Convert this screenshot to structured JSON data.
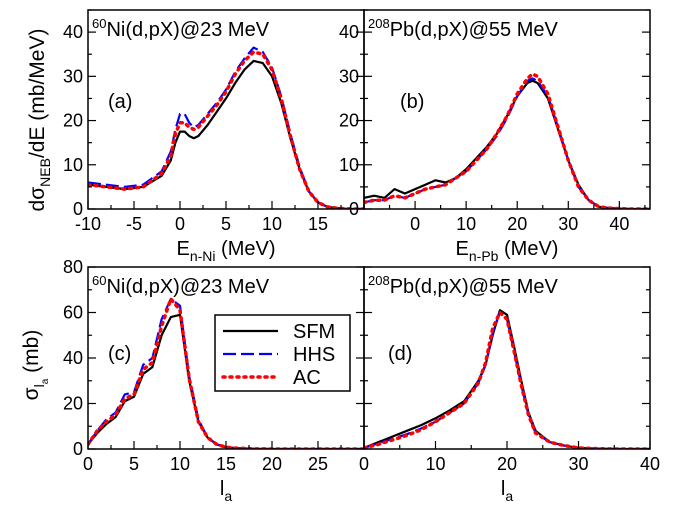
{
  "figure": {
    "top_ylabel": {
      "main": "dσ",
      "sub": "NEB",
      "rest": "/dE (mb/MeV)"
    },
    "bottom_ylabel": {
      "main": "σ",
      "sub": "l",
      "subsub": "a",
      "rest": " (mb)"
    },
    "legend": [
      {
        "label": "SFM",
        "color": "#000000",
        "dash": "solid"
      },
      {
        "label": "HHS",
        "color": "#0000ff",
        "dash": "dashed"
      },
      {
        "label": "AC",
        "color": "#ff0000",
        "dash": "dotted"
      }
    ]
  },
  "chart_data": [
    {
      "type": "line",
      "panel": "(a)",
      "reaction": {
        "mass": "60",
        "text": "Ni(d,pX)@23 MeV"
      },
      "xlabel": {
        "main": "E",
        "sub": "n-Ni",
        "rest": " (MeV)"
      },
      "xlim": [
        -10,
        20
      ],
      "ylim": [
        0,
        45
      ],
      "xticks": [
        -10,
        -5,
        0,
        5,
        10,
        15
      ],
      "yticks": [
        0,
        10,
        20,
        30,
        40
      ],
      "grid": false,
      "series": [
        {
          "name": "SFM",
          "x": [
            -10,
            -8,
            -6,
            -4,
            -2,
            -1,
            -0.5,
            0,
            0.5,
            1,
            1.5,
            2,
            3,
            4,
            5,
            6,
            7,
            8,
            9,
            10,
            11,
            12,
            13,
            14,
            15,
            16,
            17,
            18,
            19,
            20
          ],
          "y": [
            5.5,
            5,
            4.5,
            5,
            7.5,
            11,
            15,
            17.5,
            17.5,
            16.5,
            16,
            16.5,
            19,
            22,
            25,
            28.5,
            31.5,
            33.5,
            33,
            30,
            24,
            16,
            9,
            4,
            1.5,
            0.5,
            0.2,
            0.05,
            0,
            0
          ]
        },
        {
          "name": "HHS",
          "x": [
            -10,
            -8,
            -6,
            -4,
            -2,
            -1,
            -0.5,
            0,
            0.5,
            1,
            1.5,
            2,
            3,
            4,
            5,
            6,
            7,
            8,
            9,
            10,
            11,
            12,
            13,
            14,
            15,
            16,
            17,
            18,
            19,
            20
          ],
          "y": [
            6,
            5.5,
            5,
            5.5,
            8.5,
            13,
            18,
            21.5,
            21.5,
            19.5,
            18.5,
            19,
            21.5,
            24,
            27,
            31,
            34,
            36.5,
            35.5,
            32,
            25.5,
            17,
            9.5,
            4,
            1.5,
            0.5,
            0.2,
            0.05,
            0,
            0
          ]
        },
        {
          "name": "AC",
          "x": [
            -10,
            -8,
            -6,
            -4,
            -2,
            -1,
            -0.5,
            0,
            0.5,
            1,
            1.5,
            2,
            3,
            4,
            5,
            6,
            7,
            8,
            9,
            10,
            11,
            12,
            13,
            14,
            15,
            16,
            17,
            18,
            19,
            20
          ],
          "y": [
            5.5,
            5,
            4.5,
            5,
            8,
            12,
            17,
            19.5,
            19.5,
            18.5,
            18,
            18.5,
            21,
            23.5,
            26.5,
            30.5,
            33.5,
            35.5,
            35,
            31.5,
            25,
            16.5,
            9,
            4,
            1.5,
            0.5,
            0.2,
            0.05,
            0,
            0
          ]
        }
      ]
    },
    {
      "type": "line",
      "panel": "(b)",
      "reaction": {
        "mass": "208",
        "text": "Pb(d,pX)@55 MeV"
      },
      "xlabel": {
        "main": "E",
        "sub": "n-Pb",
        "rest": " (MeV)"
      },
      "xlim": [
        -10,
        46
      ],
      "ylim": [
        0,
        45
      ],
      "xticks": [
        0,
        10,
        20,
        30,
        40
      ],
      "yticks": [
        0,
        10,
        20,
        30,
        40
      ],
      "grid": false,
      "series": [
        {
          "name": "SFM",
          "x": [
            -10,
            -8,
            -6,
            -4,
            -2,
            0,
            2,
            4,
            6,
            8,
            10,
            12,
            14,
            16,
            18,
            20,
            22,
            23,
            24,
            26,
            28,
            30,
            32,
            34,
            36,
            38,
            40,
            42,
            44,
            46
          ],
          "y": [
            2.5,
            3,
            2.5,
            4.5,
            3.5,
            4.5,
            5.5,
            6.5,
            6,
            7,
            9,
            11.5,
            14,
            17,
            21,
            25.5,
            28.5,
            29,
            28.5,
            25,
            18,
            11,
            5.5,
            2,
            0.5,
            0.2,
            0.1,
            0,
            0,
            0
          ]
        },
        {
          "name": "HHS",
          "x": [
            -10,
            -8,
            -6,
            -4,
            -2,
            0,
            2,
            4,
            6,
            8,
            10,
            12,
            14,
            16,
            18,
            20,
            22,
            23,
            24,
            26,
            28,
            30,
            32,
            34,
            36,
            38,
            40,
            42,
            44,
            46
          ],
          "y": [
            1.5,
            2,
            2,
            3,
            2.5,
            3.5,
            4.5,
            5,
            5.5,
            7,
            8.5,
            11,
            13.5,
            16.5,
            20.5,
            25.5,
            29,
            29.5,
            29,
            25.5,
            18.5,
            11,
            5,
            2,
            0.5,
            0.2,
            0.1,
            0,
            0,
            0
          ]
        },
        {
          "name": "AC",
          "x": [
            -10,
            -8,
            -6,
            -4,
            -2,
            0,
            2,
            4,
            6,
            8,
            10,
            12,
            14,
            16,
            18,
            20,
            22,
            23,
            24,
            26,
            28,
            30,
            32,
            34,
            36,
            38,
            40,
            42,
            44,
            46
          ],
          "y": [
            1.5,
            2,
            2,
            3,
            2.5,
            3.5,
            4.5,
            5,
            5.5,
            7,
            8.5,
            11,
            13.5,
            17,
            21,
            26,
            29.5,
            30.5,
            30,
            26,
            18.5,
            11,
            5,
            2,
            0.5,
            0.2,
            0.1,
            0,
            0,
            0
          ]
        }
      ]
    },
    {
      "type": "line",
      "panel": "(c)",
      "reaction": {
        "mass": "60",
        "text": "Ni(d,pX)@23 MeV"
      },
      "xlabel": {
        "main": "l",
        "sub": "a",
        "rest": ""
      },
      "xlim": [
        0,
        30
      ],
      "ylim": [
        0,
        80
      ],
      "xticks": [
        0,
        5,
        10,
        15,
        20,
        25
      ],
      "yticks": [
        0,
        20,
        40,
        60,
        80
      ],
      "grid": false,
      "series": [
        {
          "name": "SFM",
          "x": [
            0,
            1,
            2,
            3,
            4,
            5,
            6,
            7,
            8,
            9,
            10,
            11,
            12,
            13,
            14,
            15,
            16,
            18,
            20,
            22,
            25,
            28,
            30
          ],
          "y": [
            2,
            7,
            11,
            14,
            21,
            23,
            33,
            36,
            50,
            58,
            59,
            30,
            12,
            5,
            2,
            0.8,
            0.4,
            0.1,
            0,
            0,
            0,
            0,
            0
          ]
        },
        {
          "name": "HHS",
          "x": [
            0,
            1,
            2,
            3,
            4,
            5,
            6,
            7,
            8,
            9,
            10,
            11,
            12,
            13,
            14,
            15,
            16,
            18,
            20,
            22,
            25,
            28,
            30
          ],
          "y": [
            2,
            8,
            13,
            16,
            24,
            25,
            37,
            40,
            57,
            66,
            63,
            32,
            13,
            5,
            2,
            0.8,
            0.4,
            0.1,
            0,
            0,
            0,
            0,
            0
          ]
        },
        {
          "name": "AC",
          "x": [
            0,
            1,
            2,
            3,
            4,
            5,
            6,
            7,
            8,
            9,
            10,
            11,
            12,
            13,
            14,
            15,
            16,
            18,
            20,
            22,
            25,
            28,
            30
          ],
          "y": [
            2,
            8,
            12,
            15,
            22,
            24,
            35,
            38,
            54,
            66,
            61,
            31,
            12,
            5,
            2,
            0.8,
            0.4,
            0.1,
            0,
            0,
            0,
            0,
            0
          ]
        }
      ]
    },
    {
      "type": "line",
      "panel": "(d)",
      "reaction": {
        "mass": "208",
        "text": "Pb(d,pX)@55 MeV"
      },
      "xlabel": {
        "main": "l",
        "sub": "a",
        "rest": ""
      },
      "xlim": [
        0,
        40
      ],
      "ylim": [
        0,
        80
      ],
      "xticks": [
        0,
        10,
        20,
        30,
        40
      ],
      "yticks": [],
      "grid": false,
      "series": [
        {
          "name": "SFM",
          "x": [
            0,
            2,
            4,
            6,
            8,
            10,
            12,
            14,
            16,
            17,
            18,
            19,
            20,
            21,
            22,
            23,
            24,
            26,
            28,
            30,
            32,
            35,
            40
          ],
          "y": [
            0.5,
            3,
            5.5,
            8,
            10.5,
            13.5,
            17,
            21,
            30,
            37,
            50,
            61,
            59,
            45,
            30,
            16,
            8,
            3,
            1.5,
            0.5,
            0.2,
            0,
            0
          ]
        },
        {
          "name": "HHS",
          "x": [
            0,
            2,
            4,
            6,
            8,
            10,
            12,
            14,
            16,
            17,
            18,
            19,
            20,
            21,
            22,
            23,
            24,
            26,
            28,
            30,
            32,
            35,
            40
          ],
          "y": [
            0.5,
            2.5,
            4.5,
            6.5,
            9,
            12,
            16,
            20,
            29,
            37,
            51,
            60,
            57,
            43,
            28,
            15,
            7,
            3,
            1.5,
            0.5,
            0.2,
            0,
            0
          ]
        },
        {
          "name": "AC",
          "x": [
            0,
            2,
            4,
            6,
            8,
            10,
            12,
            14,
            16,
            17,
            18,
            19,
            20,
            21,
            22,
            23,
            24,
            26,
            28,
            30,
            32,
            35,
            40
          ],
          "y": [
            0.5,
            2,
            4,
            6,
            8.5,
            12,
            16,
            20,
            29,
            38,
            53,
            60,
            57,
            43,
            28,
            15,
            7,
            3,
            1.5,
            0.5,
            0.2,
            0,
            0
          ]
        }
      ]
    }
  ]
}
